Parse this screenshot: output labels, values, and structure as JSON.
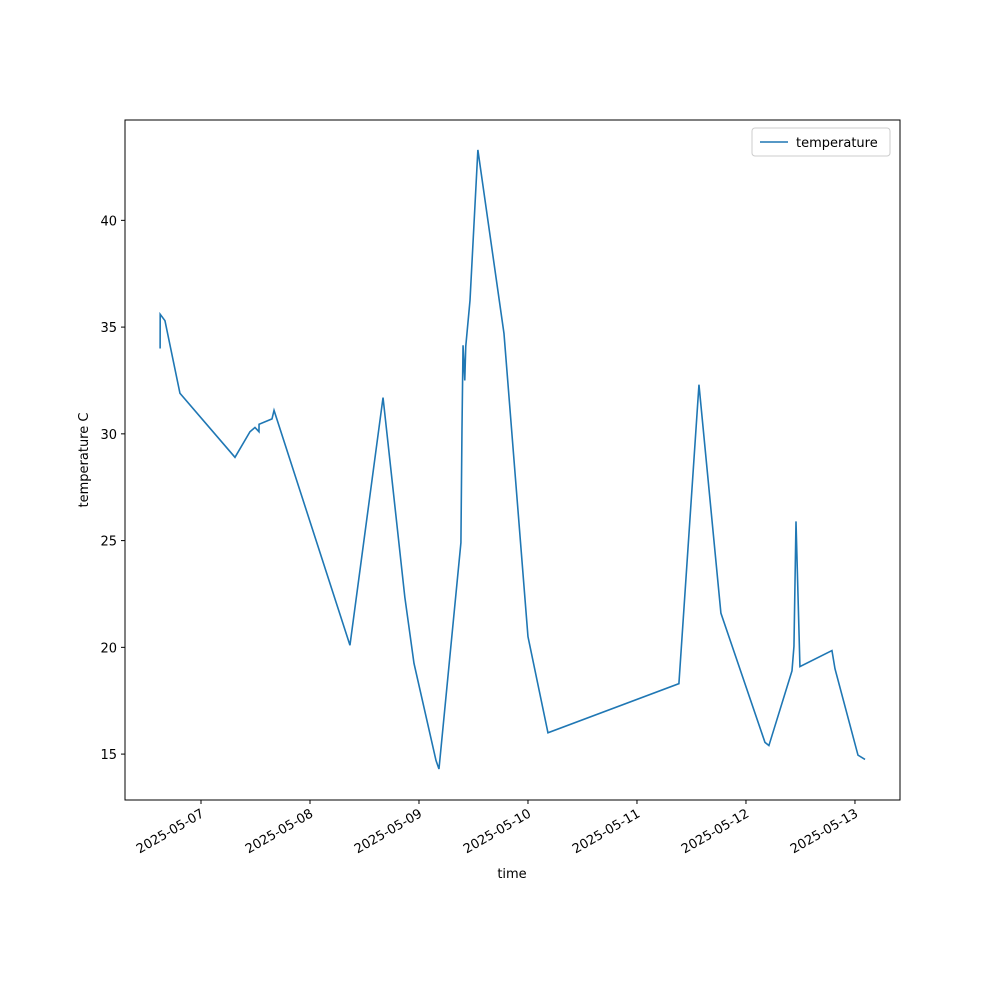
{
  "chart_data": {
    "type": "line",
    "xlabel": "time",
    "ylabel": "temperature C",
    "x": [
      "2025-05-06T15:00",
      "2025-05-06T15:01",
      "2025-05-06T16:04",
      "2025-05-06T19:22",
      "2025-05-07T07:29",
      "2025-05-07T10:47",
      "2025-05-07T11:53",
      "2025-05-07T12:46",
      "2025-05-07T12:47",
      "2025-05-07T15:38",
      "2025-05-07T16:05",
      "2025-05-08T08:48",
      "2025-05-08T16:05",
      "2025-05-08T20:53",
      "2025-05-08T22:54",
      "2025-05-09T03:45",
      "2025-05-09T04:24",
      "2025-05-09T09:14",
      "2025-05-09T09:28",
      "2025-05-09T09:42",
      "2025-05-09T10:05",
      "2025-05-09T10:18",
      "2025-05-09T11:14",
      "2025-05-09T12:58",
      "2025-05-09T18:43",
      "2025-05-10T00:00",
      "2025-05-10T04:24",
      "2025-05-11T09:14",
      "2025-05-11T13:39",
      "2025-05-11T18:29",
      "2025-05-12T04:11",
      "2025-05-12T05:03",
      "2025-05-12T10:08",
      "2025-05-12T10:34",
      "2025-05-12T11:01",
      "2025-05-12T11:53",
      "2025-05-12T18:56",
      "2025-05-12T19:36",
      "2025-05-13T00:40",
      "2025-05-13T02:13"
    ],
    "series": [
      {
        "name": "temperature",
        "color": "#1f77b4",
        "values": [
          34.0,
          35.6,
          35.3,
          31.9,
          28.9,
          30.1,
          30.3,
          30.1,
          30.45,
          30.7,
          31.1,
          20.1,
          31.7,
          22.35,
          19.25,
          14.7,
          14.3,
          24.9,
          30.2,
          34.15,
          32.5,
          34.1,
          36.25,
          43.3,
          34.7,
          20.5,
          16.0,
          18.3,
          32.3,
          21.6,
          15.55,
          15.4,
          18.9,
          20.05,
          25.9,
          19.1,
          19.85,
          19.0,
          14.95,
          14.75
        ]
      }
    ],
    "xlim": [
      "2025-05-06T07:16",
      "2025-05-13T09:55"
    ],
    "xticks": [
      "2025-05-07",
      "2025-05-08",
      "2025-05-09",
      "2025-05-10",
      "2025-05-11",
      "2025-05-12",
      "2025-05-13"
    ],
    "ylim": [
      12.85,
      44.7
    ],
    "yticks": [
      15,
      20,
      25,
      30,
      35,
      40
    ],
    "grid": false,
    "legend": "upper right"
  }
}
